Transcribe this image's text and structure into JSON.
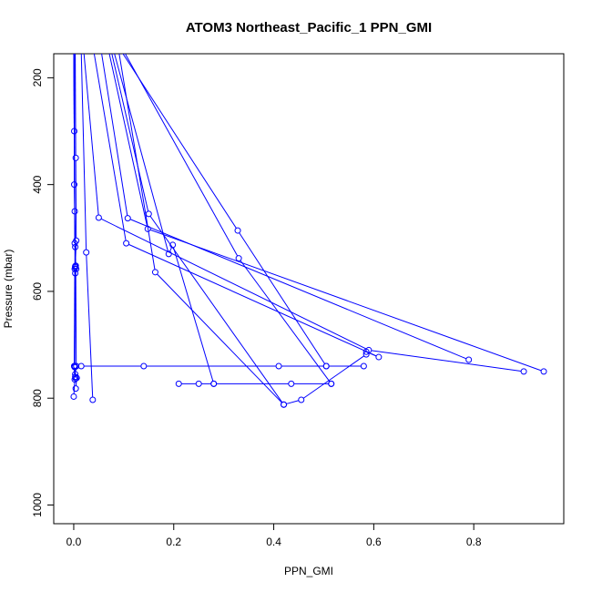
{
  "chart_data": {
    "type": "line",
    "title": "ATOM3 Northeast_Pacific_1 PPN_GMI",
    "xlabel": "PPN_GMI",
    "ylabel": "Pressure (mbar)",
    "xlim": [
      -0.04,
      0.98
    ],
    "ylim": [
      1035,
      155
    ],
    "y_reversed": true,
    "x_ticks": [
      "0.0",
      "0.2",
      "0.4",
      "0.6",
      "0.8"
    ],
    "x_tick_values": [
      0.0,
      0.2,
      0.4,
      0.6,
      0.8
    ],
    "y_ticks": [
      "200",
      "400",
      "600",
      "800",
      "1000"
    ],
    "y_tick_values": [
      200,
      400,
      600,
      800,
      1000
    ],
    "grid": false,
    "line_color": "#0000ff",
    "series": [
      {
        "x": [
          0.0,
          0.001,
          0.002,
          0.003,
          0.001,
          0.002,
          0.0
        ],
        "y": [
          150,
          300,
          510,
          555,
          740,
          765,
          797
        ]
      },
      {
        "x": [
          0.002,
          0.001,
          0.003,
          0.002,
          0.001,
          0.003
        ],
        "y": [
          150,
          400,
          517,
          558,
          740,
          760
        ]
      },
      {
        "x": [
          0.003,
          0.004,
          0.005,
          0.003,
          0.005,
          0.003,
          0.002,
          0.004
        ],
        "y": [
          150,
          350,
          505,
          553,
          558,
          566,
          742,
          763
        ]
      },
      {
        "x": [
          0.0,
          0.002,
          0.004,
          0.005,
          0.003,
          0.006,
          0.004
        ],
        "y": [
          150,
          450,
          552,
          740,
          755,
          762,
          782
        ]
      },
      {
        "x": [
          0.015,
          0.025,
          0.038
        ],
        "y": [
          150,
          527,
          803
        ]
      },
      {
        "x": [
          0.002,
          0.015,
          0.14,
          0.41,
          0.505,
          0.58
        ],
        "y": [
          740,
          740,
          740,
          740,
          740,
          740
        ]
      },
      {
        "x": [
          0.21,
          0.25,
          0.28,
          0.435,
          0.515
        ],
        "y": [
          773,
          773,
          773,
          773,
          773
        ]
      },
      {
        "x": [
          0.02,
          0.05,
          0.59,
          0.9
        ],
        "y": [
          150,
          462,
          710,
          750
        ]
      },
      {
        "x": [
          0.04,
          0.105,
          0.61,
          0.585
        ],
        "y": [
          150,
          510,
          723,
          713
        ]
      },
      {
        "x": [
          0.055,
          0.108,
          0.79
        ],
        "y": [
          150,
          463,
          728
        ]
      },
      {
        "x": [
          0.07,
          0.148,
          0.94
        ],
        "y": [
          150,
          483,
          750
        ]
      },
      {
        "x": [
          0.075,
          0.15,
          0.42,
          0.455,
          0.585
        ],
        "y": [
          150,
          455,
          812,
          803,
          718
        ]
      },
      {
        "x": [
          0.08,
          0.19,
          0.198,
          0.28
        ],
        "y": [
          150,
          530,
          513,
          773
        ]
      },
      {
        "x": [
          0.09,
          0.163,
          0.42
        ],
        "y": [
          150,
          564,
          812
        ]
      },
      {
        "x": [
          0.1,
          0.33,
          0.515
        ],
        "y": [
          150,
          538,
          773
        ]
      },
      {
        "x": [
          0.095,
          0.328,
          0.505
        ],
        "y": [
          150,
          486,
          740
        ]
      }
    ]
  }
}
